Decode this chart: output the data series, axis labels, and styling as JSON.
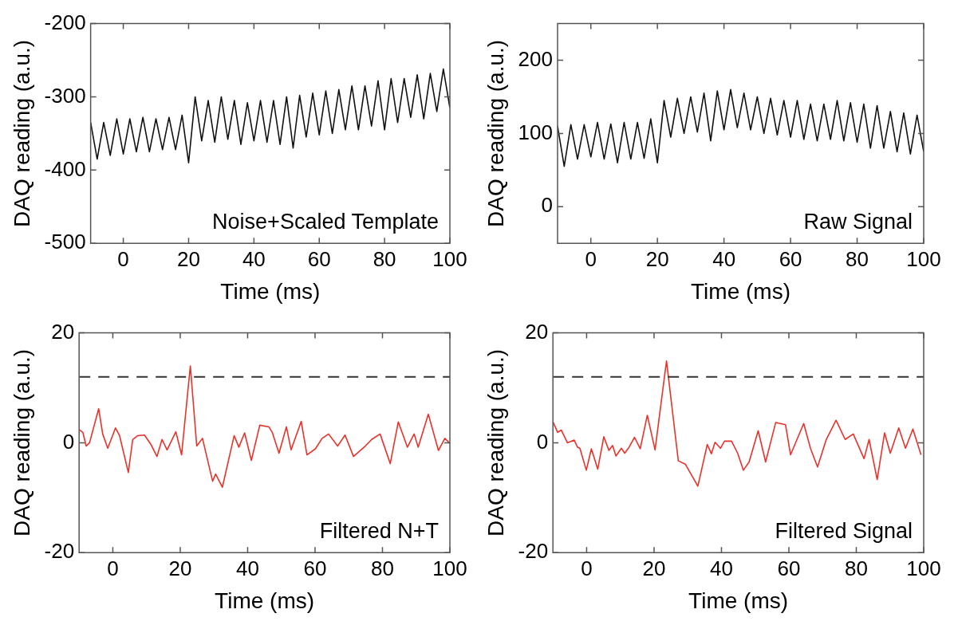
{
  "chart_data": [
    {
      "type": "line",
      "xlabel": "Time (ms)",
      "ylabel": "DAQ reading (a.u.)",
      "xlim": [
        -10,
        100
      ],
      "xticks": [
        0,
        20,
        40,
        60,
        80,
        100
      ],
      "ylim": [
        -500,
        -200
      ],
      "yticks": [
        -500,
        -400,
        -300,
        -200
      ],
      "annotations": [
        "Noise+Scaled Template"
      ],
      "series": [
        {
          "color": "#111111",
          "x": [
            -10,
            -8,
            -6,
            -4,
            -2,
            0,
            2,
            4,
            6,
            8,
            10,
            12,
            14,
            16,
            18,
            20,
            22,
            24,
            26,
            28,
            30,
            32,
            34,
            36,
            38,
            40,
            42,
            44,
            46,
            48,
            50,
            52,
            54,
            56,
            58,
            60,
            62,
            64,
            66,
            68,
            70,
            72,
            74,
            76,
            78,
            80,
            82,
            84,
            86,
            88,
            90,
            92,
            94,
            96,
            98,
            100
          ],
          "values": [
            -335,
            -385,
            -335,
            -380,
            -330,
            -378,
            -330,
            -375,
            -328,
            -375,
            -330,
            -372,
            -328,
            -372,
            -325,
            -390,
            -300,
            -360,
            -305,
            -362,
            -300,
            -358,
            -305,
            -365,
            -308,
            -360,
            -305,
            -362,
            -305,
            -365,
            -300,
            -370,
            -298,
            -355,
            -295,
            -352,
            -292,
            -350,
            -290,
            -345,
            -285,
            -345,
            -285,
            -340,
            -278,
            -345,
            -275,
            -335,
            -275,
            -328,
            -270,
            -330,
            -268,
            -320,
            -262,
            -315
          ]
        }
      ]
    },
    {
      "type": "line",
      "xlabel": "Time (ms)",
      "ylabel": "DAQ reading (a.u.)",
      "xlim": [
        -10,
        100
      ],
      "xticks": [
        0,
        20,
        40,
        60,
        80,
        100
      ],
      "ylim": [
        -50,
        250
      ],
      "yticks": [
        0,
        100,
        200
      ],
      "annotations": [
        "Raw Signal"
      ],
      "series": [
        {
          "color": "#111111",
          "x": [
            -10,
            -8,
            -6,
            -4,
            -2,
            0,
            2,
            4,
            6,
            8,
            10,
            12,
            14,
            16,
            18,
            20,
            22,
            24,
            26,
            28,
            30,
            32,
            34,
            36,
            38,
            40,
            42,
            44,
            46,
            48,
            50,
            52,
            54,
            56,
            58,
            60,
            62,
            64,
            66,
            68,
            70,
            72,
            74,
            76,
            78,
            80,
            82,
            84,
            86,
            88,
            90,
            92,
            94,
            96,
            98,
            100
          ],
          "values": [
            110,
            55,
            112,
            65,
            112,
            68,
            115,
            65,
            113,
            60,
            115,
            65,
            115,
            66,
            120,
            60,
            145,
            95,
            148,
            100,
            150,
            102,
            155,
            90,
            158,
            105,
            160,
            108,
            155,
            105,
            150,
            100,
            148,
            98,
            145,
            95,
            145,
            92,
            140,
            90,
            140,
            92,
            145,
            90,
            142,
            88,
            140,
            80,
            138,
            80,
            130,
            75,
            128,
            72,
            125,
            75
          ]
        }
      ]
    },
    {
      "type": "line",
      "xlabel": "Time (ms)",
      "ylabel": "DAQ reading (a.u.)",
      "xlim": [
        -10,
        100
      ],
      "xticks": [
        0,
        20,
        40,
        60,
        80,
        100
      ],
      "ylim": [
        -20,
        20
      ],
      "yticks": [
        -20,
        0,
        20
      ],
      "annotations": [
        "Filtered N+T"
      ],
      "ref_lines": [
        {
          "axis": "y",
          "value": 12,
          "color": "#333333",
          "line_style": "dashed"
        }
      ],
      "series": [
        {
          "color": "#e8322b",
          "x": [
            -10,
            -8.9,
            -7.9,
            -6.9,
            -4.2,
            -3,
            -1.5,
            0.8,
            2,
            4.6,
            5.9,
            7.4,
            9.4,
            10.3,
            11.3,
            13.1,
            14.6,
            16.1,
            18.7,
            20.4,
            23,
            24.9,
            26.6,
            29.6,
            30.5,
            32.5,
            36,
            37.4,
            39.1,
            41.1,
            43.6,
            46.3,
            47.3,
            49.3,
            51.5,
            52.9,
            55.9,
            57.6,
            60.1,
            62.1,
            64,
            66.7,
            68.9,
            71.4,
            74.9,
            76.8,
            79.3,
            82.3,
            84.7,
            87.4,
            89.4,
            90.6,
            93.6,
            96.6,
            98.5,
            100
          ],
          "values": [
            2.4,
            1.9,
            -0.6,
            0,
            6.2,
            1.6,
            -1,
            2.7,
            1.3,
            -5.4,
            0.6,
            1.3,
            1.4,
            0.6,
            -0.3,
            -2.5,
            0.6,
            -1.3,
            2,
            -2.2,
            14,
            -0.6,
            0.8,
            -7,
            -5.7,
            -8.1,
            1.3,
            -0.8,
            1.8,
            -3.2,
            3.2,
            2.9,
            1.9,
            -1.9,
            2.9,
            -1.3,
            3.9,
            -2.2,
            -1.1,
            0.8,
            1.6,
            -0.6,
            1.4,
            -2.5,
            -0.6,
            0.6,
            1.6,
            -3.8,
            3.8,
            -0.8,
            1.6,
            -0.8,
            5.2,
            -1.4,
            0.8,
            -0.1
          ]
        }
      ]
    },
    {
      "type": "line",
      "xlabel": "Time (ms)",
      "ylabel": "DAQ reading (a.u.)",
      "xlim": [
        -10,
        100
      ],
      "xticks": [
        0,
        20,
        40,
        60,
        80,
        100
      ],
      "ylim": [
        -20,
        20
      ],
      "yticks": [
        -20,
        0,
        20
      ],
      "annotations": [
        "Filtered Signal"
      ],
      "ref_lines": [
        {
          "axis": "y",
          "value": 12,
          "color": "#333333",
          "line_style": "dashed"
        }
      ],
      "series": [
        {
          "color": "#e8322b",
          "x": [
            -9.9,
            -8.6,
            -7.5,
            -5.7,
            -3.7,
            -2.7,
            -2,
            -0.1,
            1.4,
            3.3,
            5.1,
            6.6,
            7.7,
            8.7,
            10.3,
            11.3,
            12.6,
            14.2,
            15.9,
            18,
            20.3,
            23.7,
            27.2,
            29.3,
            33,
            35.8,
            37,
            38.1,
            39.7,
            40.9,
            43,
            44.8,
            46.5,
            48.2,
            50.9,
            53.1,
            56.1,
            59,
            60.5,
            64.4,
            66.4,
            68.5,
            71.1,
            74,
            76.7,
            79.1,
            82.3,
            83.8,
            86.2,
            88.4,
            90.1,
            92.6,
            94.6,
            96.8,
            99.2
          ],
          "values": [
            3.7,
            1.9,
            2.3,
            0,
            0.5,
            -0.8,
            -1,
            -5,
            -1.1,
            -4.8,
            1.1,
            -1.4,
            -0.5,
            -2.4,
            -1,
            -1.9,
            -0.8,
            1,
            -1.1,
            5,
            -1.3,
            14.9,
            -3.3,
            -3.9,
            -7.9,
            -0.3,
            -2,
            0.1,
            -1,
            0.3,
            0.3,
            -1.9,
            -5,
            -3.5,
            2.2,
            -3.5,
            3.7,
            3.3,
            -2.2,
            3.5,
            -1,
            -4.4,
            0.6,
            4.1,
            0.6,
            1.6,
            -2.9,
            0.6,
            -6.7,
            1.8,
            -1.9,
            2.7,
            -1,
            2.5,
            -2.2
          ]
        }
      ]
    }
  ]
}
